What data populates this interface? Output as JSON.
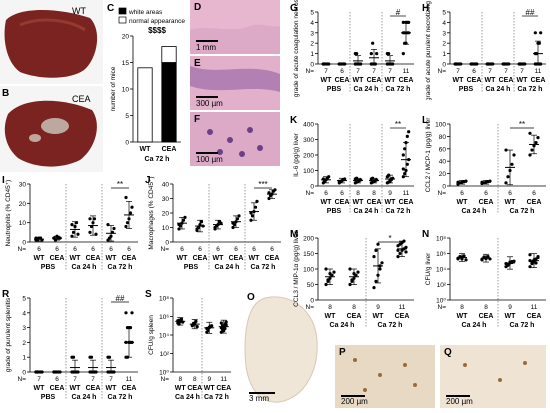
{
  "panels": {
    "A": {
      "label": "A",
      "tag": "WT"
    },
    "B": {
      "label": "B",
      "tag": "CEA"
    },
    "D": {
      "label": "D",
      "scale": "1 mm"
    },
    "E": {
      "label": "E",
      "scale": "300 µm"
    },
    "F": {
      "label": "F",
      "scale": "100 µm"
    },
    "O": {
      "label": "O",
      "scale": "3 mm"
    },
    "P": {
      "label": "P",
      "scale": "200 µm"
    },
    "Q": {
      "label": "Q",
      "scale": "200 µm"
    }
  },
  "colors": {
    "liver": "#7a2320",
    "liver_light": "#a84a3c",
    "he_pink": "#e7b7cf",
    "he_purple": "#8a5a9e",
    "ihc_bg": "#efe6d8",
    "ihc_brown": "#9a6a3a"
  },
  "chart_data": [
    {
      "id": "C",
      "label": "C",
      "type": "bar",
      "categories": [
        "WT",
        "CEA"
      ],
      "group_label": "Ca 72 h",
      "ylabel": "number of mice",
      "ylim": [
        0,
        20
      ],
      "yticks": [
        0,
        5,
        10,
        15,
        20
      ],
      "series": [
        {
          "name": "white areas",
          "values": [
            0,
            15
          ]
        },
        {
          "name": "normal appearance",
          "values": [
            14,
            3
          ]
        }
      ],
      "significance": "$$$$"
    },
    {
      "id": "G",
      "label": "G",
      "type": "scatter",
      "ylabel": "grade of acute coagulation necrosis, liver",
      "ylim": [
        0,
        5
      ],
      "yticks": [
        0,
        1,
        2,
        3,
        4,
        5
      ],
      "groups": [
        "PBS",
        "Ca 24 h",
        "Ca 72 h"
      ],
      "x": [
        "WT",
        "CEA",
        "WT",
        "CEA",
        "WT",
        "CEA"
      ],
      "n": [
        "7",
        "6",
        "7",
        "7",
        "7",
        "11"
      ],
      "n_prefix": "N=",
      "means": [
        0,
        0,
        0.3,
        0.6,
        0.3,
        3.0
      ],
      "sd": [
        0,
        0,
        0.5,
        0.8,
        0.5,
        1.1
      ],
      "points": [
        [
          0,
          0,
          0,
          0,
          0,
          0,
          0
        ],
        [
          0,
          0,
          0,
          0,
          0,
          0
        ],
        [
          0,
          0,
          0,
          0,
          0,
          1,
          1
        ],
        [
          0,
          0,
          0,
          0,
          1,
          1,
          2
        ],
        [
          0,
          0,
          0,
          0,
          0,
          1,
          1
        ],
        [
          1,
          2,
          2,
          3,
          3,
          3,
          3,
          4,
          4,
          4,
          4
        ]
      ],
      "significance": {
        "label": "#",
        "pair": [
          4,
          5
        ]
      }
    },
    {
      "id": "H",
      "label": "H",
      "type": "scatter",
      "ylabel": "grade of acute purulent necrotizing hepatitis",
      "ylim": [
        0,
        5
      ],
      "yticks": [
        0,
        1,
        2,
        3,
        4,
        5
      ],
      "groups": [
        "PBS",
        "Ca 24 h",
        "Ca 72 h"
      ],
      "x": [
        "WT",
        "CEA",
        "WT",
        "CEA",
        "WT",
        "CEA"
      ],
      "n": [
        "7",
        "6",
        "7",
        "7",
        "7",
        "11"
      ],
      "n_prefix": "N=",
      "means": [
        0,
        0,
        0,
        0,
        0,
        1.0
      ],
      "sd": [
        0,
        0,
        0,
        0,
        0,
        1.2
      ],
      "points": [
        [
          0,
          0,
          0,
          0,
          0,
          0,
          0
        ],
        [
          0,
          0,
          0,
          0,
          0,
          0
        ],
        [
          0,
          0,
          0,
          0,
          0,
          0,
          0
        ],
        [
          0,
          0,
          0,
          0,
          0,
          0,
          0
        ],
        [
          0,
          0,
          0,
          0,
          0,
          0,
          0
        ],
        [
          0,
          0,
          0,
          0,
          0,
          1,
          1,
          2,
          2,
          3,
          3
        ]
      ],
      "significance": {
        "label": "##",
        "pair": [
          4,
          5
        ]
      }
    },
    {
      "id": "I",
      "label": "I",
      "type": "scatter",
      "ylabel": "Neutrophils (% CD45⁺)",
      "ylim": [
        0,
        30
      ],
      "yticks": [
        0,
        10,
        20,
        30
      ],
      "groups": [
        "PBS",
        "Ca 24 h",
        "Ca 72 h"
      ],
      "x": [
        "WT",
        "CEA",
        "WT",
        "CEA",
        "WT",
        "CEA"
      ],
      "n": [
        "6",
        "6",
        "6",
        "6",
        "6",
        "6"
      ],
      "n_prefix": "N=",
      "means": [
        1.5,
        2.0,
        6.5,
        8.5,
        4.5,
        14
      ],
      "sd": [
        1,
        1,
        4,
        5,
        4,
        7
      ],
      "points": [
        [
          1,
          1,
          2,
          2,
          1,
          2
        ],
        [
          2,
          1,
          3,
          2,
          2,
          2
        ],
        [
          3,
          5,
          8,
          10,
          4,
          9
        ],
        [
          5,
          8,
          10,
          12,
          4,
          12
        ],
        [
          1,
          2,
          3,
          5,
          7,
          9
        ],
        [
          8,
          10,
          12,
          15,
          18,
          23
        ]
      ],
      "significance": {
        "label": "**",
        "pair": [
          4,
          5
        ]
      }
    },
    {
      "id": "J",
      "label": "J",
      "type": "scatter",
      "ylabel": "Macrophages (% CD45⁺)",
      "ylim": [
        0,
        40
      ],
      "yticks": [
        0,
        10,
        20,
        30,
        40
      ],
      "groups": [
        "PBS",
        "Ca 24 h",
        "Ca 72 h"
      ],
      "x": [
        "WT",
        "CEA",
        "WT",
        "CEA",
        "WT",
        "CEA"
      ],
      "n": [
        "6",
        "6",
        "6",
        "6",
        "6",
        "6"
      ],
      "n_prefix": "N=",
      "means": [
        13,
        11,
        12,
        14,
        21,
        33
      ],
      "sd": [
        4,
        4,
        3,
        4,
        6,
        3
      ],
      "points": [
        [
          9,
          11,
          13,
          15,
          17,
          12
        ],
        [
          8,
          10,
          12,
          14,
          11,
          9
        ],
        [
          9,
          11,
          12,
          14,
          13,
          10
        ],
        [
          10,
          12,
          14,
          16,
          18,
          13
        ],
        [
          15,
          18,
          21,
          24,
          28,
          20
        ],
        [
          30,
          32,
          33,
          35,
          36,
          34
        ]
      ],
      "significance": {
        "label": "***",
        "pair": [
          4,
          5
        ]
      }
    },
    {
      "id": "K",
      "label": "K",
      "type": "scatter",
      "ylabel": "IL-6 (pg/g) liver",
      "ylim": [
        0,
        400
      ],
      "yticks": [
        0,
        100,
        200,
        300,
        400
      ],
      "groups": [
        "PBS",
        "Ca 24 h",
        "Ca 72 h"
      ],
      "x": [
        "WT",
        "CEA",
        "WT",
        "CEA",
        "WT",
        "CEA"
      ],
      "n": [
        "6",
        "6",
        "8",
        "8",
        "9",
        "11"
      ],
      "n_prefix": "N=",
      "means": [
        40,
        35,
        35,
        35,
        45,
        170
      ],
      "sd": [
        20,
        15,
        15,
        15,
        25,
        110
      ],
      "points": [
        [
          20,
          30,
          40,
          50,
          60,
          45
        ],
        [
          20,
          30,
          35,
          40,
          45,
          30
        ],
        [
          20,
          25,
          30,
          35,
          40,
          45,
          50,
          35
        ],
        [
          20,
          25,
          30,
          35,
          40,
          45,
          50,
          30
        ],
        [
          20,
          25,
          30,
          40,
          50,
          60,
          70,
          35,
          45
        ],
        [
          60,
          80,
          100,
          140,
          170,
          200,
          240,
          280,
          320,
          350,
          110
        ]
      ],
      "significance": {
        "label": "**",
        "pair": [
          4,
          5
        ]
      }
    },
    {
      "id": "L",
      "label": "L",
      "type": "scatter",
      "ylabel": "CCL2 / MCP-1 (pg/g) liver",
      "ylim": [
        0,
        100
      ],
      "yticks": [
        0,
        20,
        40,
        60,
        80,
        100
      ],
      "groups": [
        "Ca 24 h",
        "Ca 72 h"
      ],
      "x": [
        "WT",
        "CEA",
        "WT",
        "CEA"
      ],
      "n": [
        "6",
        "6",
        "6",
        "6"
      ],
      "n_prefix": "N=",
      "means": [
        6,
        6,
        30,
        67
      ],
      "sd": [
        3,
        3,
        28,
        15
      ],
      "points": [
        [
          3,
          5,
          6,
          7,
          8,
          6
        ],
        [
          4,
          5,
          6,
          7,
          8,
          6
        ],
        [
          5,
          15,
          25,
          35,
          50,
          58
        ],
        [
          50,
          58,
          65,
          70,
          78,
          85
        ]
      ],
      "significance": {
        "label": "**",
        "pair": [
          2,
          3
        ]
      }
    },
    {
      "id": "M",
      "label": "M",
      "type": "scatter",
      "ylabel": "CCL3 / MIP-1α (pg/g) liver",
      "ylim": [
        0,
        200
      ],
      "yticks": [
        0,
        50,
        100,
        150,
        200
      ],
      "groups": [
        "Ca 24 h",
        "Ca 72 h"
      ],
      "x": [
        "WT",
        "CEA",
        "WT",
        "CEA"
      ],
      "n": [
        "8",
        "8",
        "9",
        "11"
      ],
      "n_prefix": "N=",
      "means": [
        75,
        75,
        110,
        165
      ],
      "sd": [
        25,
        25,
        55,
        25
      ],
      "points": [
        [
          50,
          60,
          70,
          80,
          90,
          100,
          65,
          85
        ],
        [
          50,
          60,
          70,
          80,
          90,
          100,
          65,
          85
        ],
        [
          40,
          60,
          80,
          100,
          120,
          140,
          160,
          180,
          110
        ],
        [
          140,
          150,
          160,
          165,
          170,
          175,
          180,
          185,
          190,
          155,
          160
        ]
      ],
      "significance": {
        "label": "*",
        "pair": [
          2,
          3
        ]
      }
    },
    {
      "id": "N",
      "label": "N",
      "type": "scatter",
      "log": true,
      "ylabel": "CFU/g liver",
      "ylim": [
        1,
        100000000
      ],
      "yticks": [
        1,
        100,
        10000,
        1000000,
        100000000
      ],
      "ytick_labels": [
        "10⁰",
        "10²",
        "10⁴",
        "10⁶",
        "10⁸"
      ],
      "groups": [
        "Ca 24 h",
        "Ca 72 h"
      ],
      "x": [
        "WT",
        "CEA",
        "WT",
        "CEA"
      ],
      "n": [
        "8",
        "8",
        "9",
        "11"
      ],
      "n_prefix": "N=",
      "means": [
        300000,
        250000,
        60000,
        120000
      ],
      "sd_log": [
        0.5,
        0.5,
        0.8,
        0.9
      ],
      "points": [
        [
          200000,
          400000,
          300000,
          500000,
          150000,
          250000,
          350000,
          200000
        ],
        [
          150000,
          300000,
          250000,
          400000,
          200000,
          180000,
          350000,
          220000
        ],
        [
          20000,
          40000,
          60000,
          90000,
          100000,
          50000,
          30000,
          80000,
          70000
        ],
        [
          20000,
          50000,
          100000,
          200000,
          400000,
          700000,
          80000,
          150000,
          60000,
          300000,
          120000
        ]
      ],
      "significance": null
    },
    {
      "id": "R",
      "label": "R",
      "type": "scatter",
      "ylabel": "grade of purulent splenitis",
      "ylim": [
        0,
        5
      ],
      "yticks": [
        0,
        1,
        2,
        3,
        4,
        5
      ],
      "groups": [
        "PBS",
        "Ca 24 h",
        "Ca 72 h"
      ],
      "x": [
        "WT",
        "CEA",
        "WT",
        "CEA",
        "WT",
        "CEA"
      ],
      "n": [
        "7",
        "6",
        "7",
        "7",
        "7",
        "11"
      ],
      "n_prefix": "N=",
      "means": [
        0,
        0,
        0.3,
        0.3,
        0.3,
        2.0
      ],
      "sd": [
        0,
        0,
        0.5,
        0.5,
        0.5,
        1.0
      ],
      "points": [
        [
          0,
          0,
          0,
          0,
          0,
          0,
          0
        ],
        [
          0,
          0,
          0,
          0,
          0,
          0
        ],
        [
          0,
          0,
          0,
          0,
          0,
          1,
          1
        ],
        [
          0,
          0,
          0,
          0,
          0,
          1,
          1
        ],
        [
          0,
          0,
          0,
          0,
          0,
          1,
          1
        ],
        [
          1,
          1,
          2,
          2,
          2,
          2,
          3,
          3,
          3,
          4,
          4
        ]
      ],
      "significance": {
        "label": "##",
        "pair": [
          4,
          5
        ]
      }
    },
    {
      "id": "S",
      "label": "S",
      "type": "scatter",
      "log": true,
      "ylabel": "CFU/g spleen",
      "ylim": [
        1,
        100000000
      ],
      "yticks": [
        1,
        100,
        10000,
        1000000,
        100000000
      ],
      "ytick_labels": [
        "10⁰",
        "10²",
        "10⁴",
        "10⁶",
        "10⁸"
      ],
      "groups": [
        "Ca 24 h",
        "Ca 72 h"
      ],
      "x": [
        "WT",
        "CEA",
        "WT",
        "CEA"
      ],
      "n": [
        "8",
        "8",
        "9",
        "11"
      ],
      "n_prefix": "N=",
      "means": [
        300000,
        150000,
        60000,
        80000
      ],
      "sd_log": [
        0.4,
        0.5,
        0.6,
        0.7
      ],
      "points": [
        [
          200000,
          400000,
          300000,
          500000,
          250000,
          350000,
          150000,
          300000
        ],
        [
          100000,
          150000,
          200000,
          300000,
          80000,
          120000,
          180000,
          150000
        ],
        [
          20000,
          40000,
          60000,
          80000,
          100000,
          50000,
          30000,
          70000,
          90000
        ],
        [
          20000,
          40000,
          80000,
          150000,
          250000,
          60000,
          100000,
          30000,
          50000,
          120000,
          200000
        ]
      ],
      "significance": null
    }
  ]
}
